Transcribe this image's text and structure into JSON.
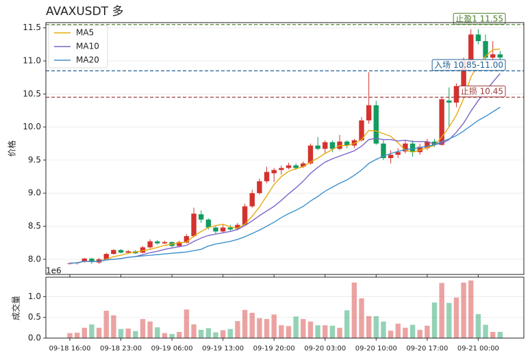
{
  "chart_data": [
    {
      "type": "candlestick",
      "title": "AVAXUSDT  多",
      "y_label": "价格",
      "x": [
        "09-18 16:00",
        "09-18 17:00",
        "09-18 18:00",
        "09-18 19:00",
        "09-18 20:00",
        "09-18 21:00",
        "09-18 22:00",
        "09-18 23:00",
        "09-19 00:00",
        "09-19 01:00",
        "09-19 02:00",
        "09-19 03:00",
        "09-19 04:00",
        "09-19 05:00",
        "09-19 06:00",
        "09-19 07:00",
        "09-19 08:00",
        "09-19 09:00",
        "09-19 10:00",
        "09-19 11:00",
        "09-19 12:00",
        "09-19 13:00",
        "09-19 14:00",
        "09-19 15:00",
        "09-19 16:00",
        "09-19 17:00",
        "09-19 18:00",
        "09-19 19:00",
        "09-19 20:00",
        "09-19 21:00",
        "09-19 22:00",
        "09-19 23:00",
        "09-20 00:00",
        "09-20 01:00",
        "09-20 02:00",
        "09-20 03:00",
        "09-20 04:00",
        "09-20 05:00",
        "09-20 06:00",
        "09-20 07:00",
        "09-20 08:00",
        "09-20 09:00",
        "09-20 10:00",
        "09-20 11:00",
        "09-20 12:00",
        "09-20 13:00",
        "09-20 14:00",
        "09-20 15:00",
        "09-20 16:00",
        "09-20 17:00",
        "09-20 18:00",
        "09-20 19:00",
        "09-20 20:00",
        "09-20 21:00",
        "09-20 22:00",
        "09-20 23:00",
        "09-21 00:00",
        "09-21 01:00",
        "09-21 02:00",
        "09-21 03:00"
      ],
      "open": [
        7.93,
        7.94,
        7.96,
        8.01,
        7.95,
        8.0,
        8.08,
        8.14,
        8.1,
        8.12,
        8.1,
        8.18,
        8.27,
        8.24,
        8.26,
        8.2,
        8.25,
        8.35,
        8.68,
        8.6,
        8.48,
        8.42,
        8.48,
        8.46,
        8.52,
        8.8,
        9.0,
        9.18,
        9.3,
        9.35,
        9.38,
        9.42,
        9.4,
        9.45,
        9.72,
        9.67,
        9.77,
        9.67,
        9.78,
        9.72,
        9.8,
        10.1,
        10.33,
        9.75,
        9.53,
        9.58,
        9.63,
        9.75,
        9.62,
        9.68,
        9.78,
        9.73,
        10.4,
        10.37,
        10.62,
        11.0,
        11.4,
        11.3,
        11.05,
        11.1
      ],
      "high": [
        7.95,
        7.96,
        8.02,
        8.02,
        8.02,
        8.1,
        8.15,
        8.15,
        8.14,
        8.14,
        8.2,
        8.3,
        8.29,
        8.28,
        8.27,
        8.28,
        8.38,
        8.78,
        8.74,
        8.62,
        8.5,
        8.52,
        8.52,
        8.55,
        8.84,
        9.05,
        9.22,
        9.4,
        9.38,
        9.42,
        9.46,
        9.45,
        9.48,
        9.75,
        9.85,
        9.8,
        9.8,
        9.88,
        9.8,
        9.82,
        10.15,
        10.83,
        10.4,
        9.8,
        9.65,
        9.68,
        9.8,
        9.8,
        9.75,
        9.82,
        9.82,
        10.45,
        10.6,
        10.66,
        11.05,
        11.48,
        11.48,
        11.4,
        11.3,
        11.15
      ],
      "low": [
        7.92,
        7.92,
        7.95,
        7.93,
        7.93,
        7.99,
        8.07,
        8.09,
        8.09,
        8.08,
        8.09,
        8.16,
        8.22,
        8.23,
        8.18,
        8.19,
        8.24,
        8.33,
        8.55,
        8.45,
        8.38,
        8.4,
        8.42,
        8.44,
        8.5,
        8.78,
        8.98,
        9.15,
        9.17,
        9.28,
        9.36,
        9.35,
        9.38,
        9.43,
        9.65,
        9.6,
        9.62,
        9.65,
        9.68,
        9.68,
        9.78,
        10.05,
        9.73,
        9.5,
        9.45,
        9.53,
        9.6,
        9.55,
        9.58,
        9.65,
        9.7,
        9.72,
        10.0,
        10.3,
        10.55,
        10.95,
        11.25,
        11.0,
        10.95,
        11.0
      ],
      "close": [
        7.94,
        7.95,
        8.01,
        7.96,
        8.0,
        8.08,
        8.14,
        8.1,
        8.12,
        8.09,
        8.18,
        8.27,
        8.24,
        8.26,
        8.2,
        8.26,
        8.35,
        8.69,
        8.6,
        8.48,
        8.42,
        8.48,
        8.45,
        8.52,
        8.8,
        9.0,
        9.18,
        9.32,
        9.35,
        9.38,
        9.42,
        9.38,
        9.45,
        9.72,
        9.67,
        9.77,
        9.67,
        9.78,
        9.72,
        9.8,
        10.1,
        10.33,
        9.75,
        9.53,
        9.58,
        9.62,
        9.75,
        9.62,
        9.7,
        9.78,
        9.73,
        10.42,
        10.37,
        10.62,
        11.0,
        11.4,
        11.3,
        11.05,
        11.1,
        11.05
      ],
      "up_color": "#d3322e",
      "down_color": "#129c5e",
      "series": [
        {
          "name": "MA5",
          "color": "#e8a90c",
          "values": [
            7.94,
            7.945,
            7.97,
            7.965,
            7.97,
            8.0,
            8.04,
            8.06,
            8.09,
            8.11,
            8.13,
            8.15,
            8.18,
            8.21,
            8.23,
            8.25,
            8.26,
            8.35,
            8.42,
            8.48,
            8.51,
            8.53,
            8.49,
            8.47,
            8.53,
            8.65,
            8.79,
            8.96,
            9.13,
            9.25,
            9.33,
            9.37,
            9.4,
            9.47,
            9.53,
            9.6,
            9.66,
            9.72,
            9.72,
            9.75,
            9.81,
            9.95,
            9.94,
            9.9,
            9.86,
            9.76,
            9.65,
            9.62,
            9.65,
            9.69,
            9.72,
            9.85,
            10.0,
            10.18,
            10.43,
            10.76,
            10.94,
            11.07,
            11.17,
            11.18
          ]
        },
        {
          "name": "MA10",
          "color": "#7a63c9",
          "values": [
            7.94,
            7.945,
            7.97,
            7.965,
            7.97,
            7.99,
            8.0,
            8.01,
            8.03,
            8.04,
            8.07,
            8.1,
            8.12,
            8.15,
            8.17,
            8.19,
            8.21,
            8.27,
            8.32,
            8.36,
            8.38,
            8.4,
            8.42,
            8.45,
            8.51,
            8.58,
            8.66,
            8.73,
            8.8,
            8.89,
            8.99,
            9.08,
            9.18,
            9.3,
            9.39,
            9.47,
            9.52,
            9.56,
            9.6,
            9.64,
            9.71,
            9.81,
            9.83,
            9.81,
            9.81,
            9.79,
            9.8,
            9.78,
            9.78,
            9.78,
            9.74,
            9.75,
            9.81,
            9.92,
            10.06,
            10.24,
            10.4,
            10.54,
            10.68,
            10.81
          ]
        },
        {
          "name": "MA20",
          "color": "#3d8fcc",
          "values": [
            7.94,
            7.945,
            7.97,
            7.965,
            7.97,
            7.99,
            8.0,
            8.01,
            8.03,
            8.04,
            8.05,
            8.06,
            8.07,
            8.08,
            8.09,
            8.1,
            8.11,
            8.13,
            8.15,
            8.2,
            8.23,
            8.25,
            8.27,
            8.3,
            8.34,
            8.39,
            8.44,
            8.5,
            8.56,
            8.63,
            8.69,
            8.74,
            8.8,
            8.88,
            8.95,
            9.03,
            9.09,
            9.15,
            9.2,
            9.27,
            9.35,
            9.45,
            9.51,
            9.56,
            9.6,
            9.63,
            9.66,
            9.67,
            9.69,
            9.71,
            9.73,
            9.78,
            9.82,
            9.87,
            9.94,
            10.02,
            10.1,
            10.16,
            10.23,
            10.3
          ]
        }
      ],
      "levels": [
        {
          "label": "止盈1 11.55",
          "value": 11.55,
          "color": "#4b7f2c"
        },
        {
          "label": "入场 10.85-11.00",
          "value": 10.85,
          "color": "#1f5f96"
        },
        {
          "label": "止损 10.45",
          "value": 10.45,
          "color": "#9e3a3a"
        }
      ],
      "ylim": [
        7.77,
        11.58
      ],
      "yticks": [
        {
          "value": 8,
          "label": "8.0"
        },
        8.5,
        {
          "value": 9,
          "label": "9.0"
        },
        9.5,
        {
          "value": 10,
          "label": "10.0"
        },
        10.5,
        {
          "value": 11,
          "label": "11.0"
        },
        11.5
      ],
      "xticks": [
        "09-18 16:00",
        "09-18 23:00",
        "09-19 06:00",
        "09-19 13:00",
        "09-19 20:00",
        "09-20 03:00",
        "09-20 10:00",
        "09-20 17:00",
        "09-21 00:00"
      ],
      "grid": true,
      "legend": "upper left"
    },
    {
      "type": "bar",
      "y_label": "成交量",
      "offset_label": "1e6",
      "values": [
        0.12,
        0.13,
        0.25,
        0.33,
        0.25,
        0.66,
        0.55,
        0.22,
        0.23,
        0.17,
        0.46,
        0.4,
        0.26,
        0.12,
        0.1,
        0.15,
        0.69,
        0.33,
        0.2,
        0.24,
        0.14,
        0.19,
        0.22,
        0.41,
        0.68,
        0.61,
        0.48,
        0.46,
        0.57,
        0.31,
        0.29,
        0.52,
        0.46,
        0.4,
        0.31,
        0.31,
        0.3,
        0.25,
        0.67,
        1.34,
        0.96,
        0.53,
        0.53,
        0.4,
        0.18,
        0.35,
        0.25,
        0.32,
        0.2,
        0.3,
        0.86,
        1.33,
        0.85,
        0.98,
        1.34,
        1.39,
        0.58,
        0.32,
        0.15,
        0.15
      ],
      "ylim": [
        0,
        1.47
      ],
      "yticks": [
        {
          "value": 0,
          "label": "0.0"
        },
        0.5,
        {
          "value": 1,
          "label": "1.0"
        }
      ],
      "grid": true
    }
  ]
}
